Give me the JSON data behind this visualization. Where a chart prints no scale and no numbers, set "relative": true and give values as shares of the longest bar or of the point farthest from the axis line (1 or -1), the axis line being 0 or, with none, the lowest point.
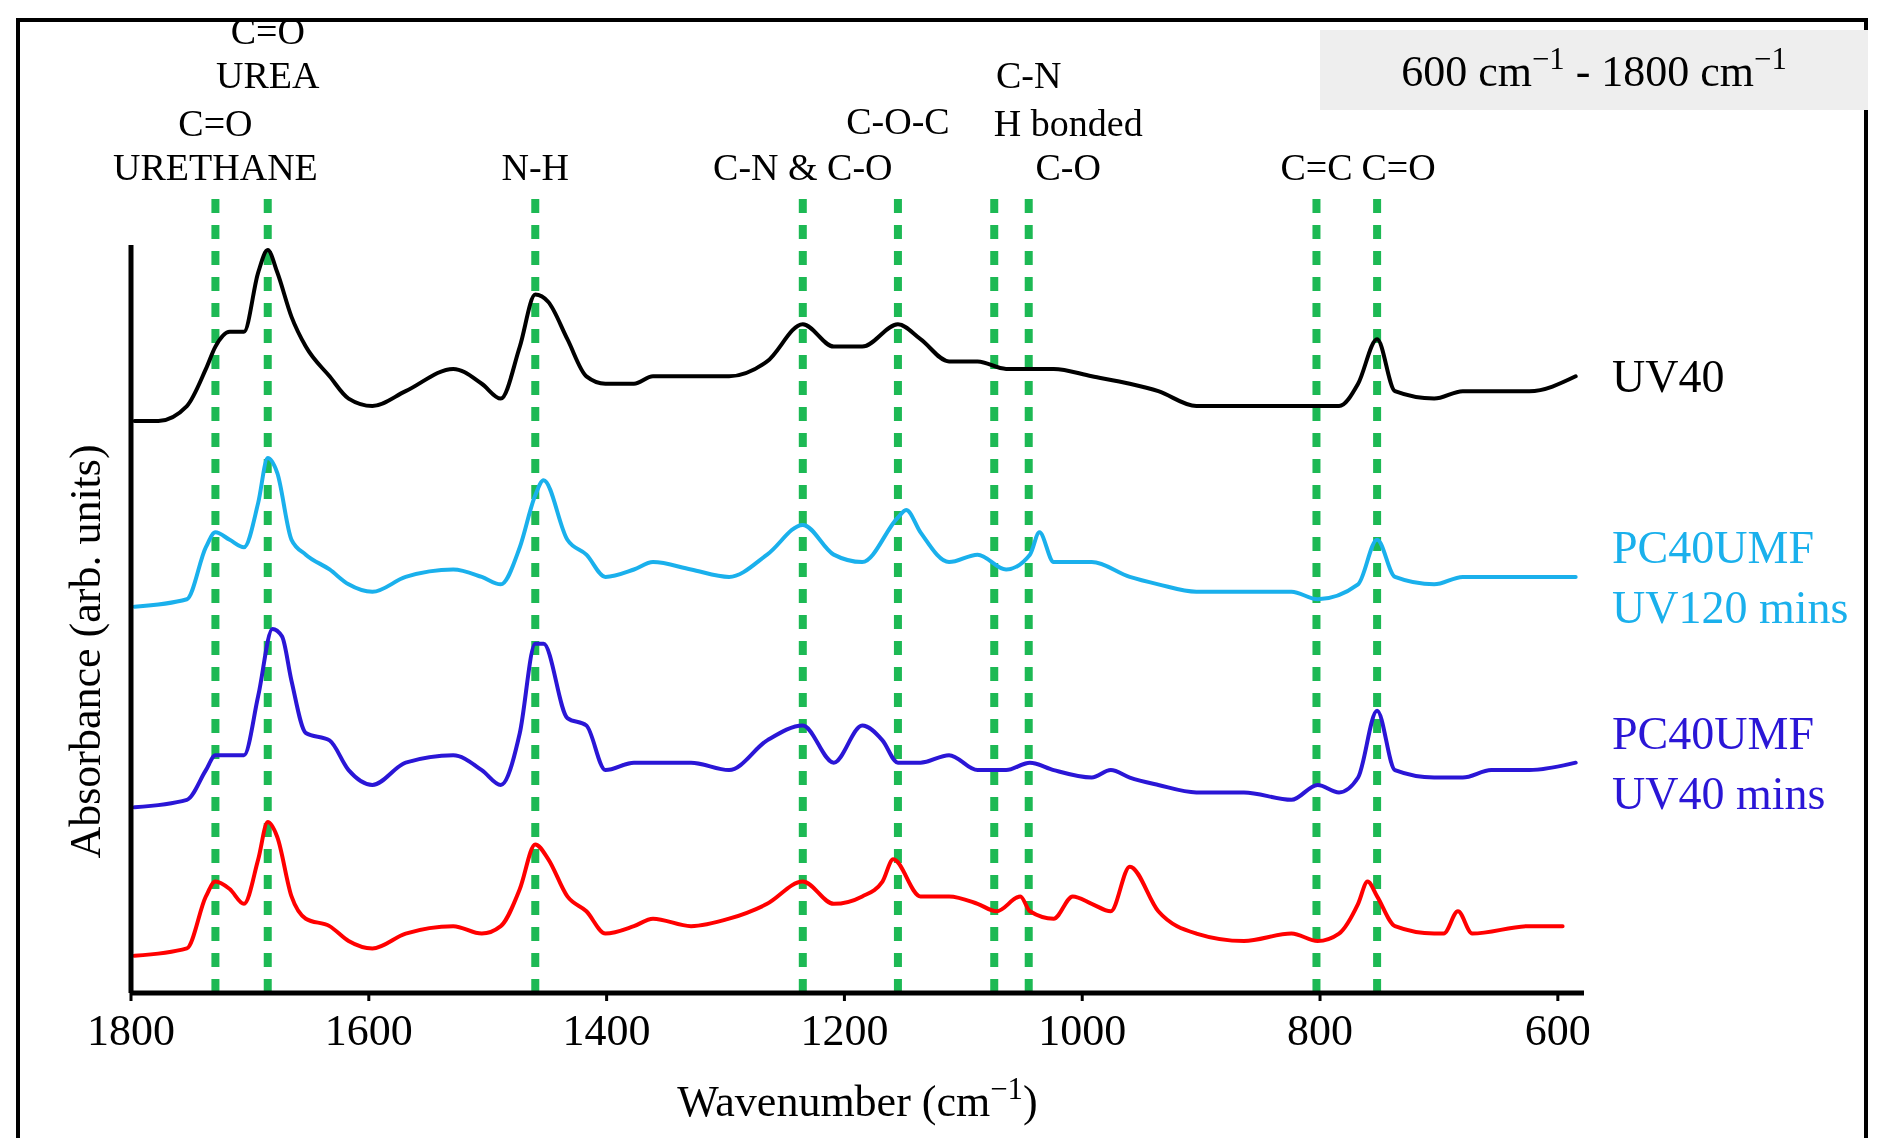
{
  "chart_data": {
    "type": "line",
    "relative": true,
    "xlabel": "Wavenumber (cm$^{−1}$)",
    "ylabel": "Absorbance (arb. units)",
    "xlim": [
      1800,
      578
    ],
    "xticks": [
      1800,
      1600,
      1400,
      1200,
      1000,
      800,
      600
    ],
    "grid": false,
    "legend": false,
    "line_style": "solid",
    "marker": "none",
    "annotations": [
      "600 cm$^{−1}$ - 1800 cm$^{−1}$"
    ],
    "ref_lines": [
      {
        "axis": "x",
        "value": 1729,
        "label": "C=O\nURETHANE",
        "color": "#1db954",
        "line_style": "dashed"
      },
      {
        "axis": "x",
        "value": 1685,
        "label": "C=O\nUREA",
        "color": "#1db954",
        "line_style": "dashed"
      },
      {
        "axis": "x",
        "value": 1460,
        "label": "N-H",
        "color": "#1db954",
        "line_style": "dashed"
      },
      {
        "axis": "x",
        "value": 1235,
        "label": "C-N & C-O",
        "color": "#1db954",
        "line_style": "dashed"
      },
      {
        "axis": "x",
        "value": 1155,
        "label": "C-O-C",
        "color": "#1db954",
        "line_style": "dashed"
      },
      {
        "axis": "x",
        "value": 1074,
        "label": "H bonded\nC-O",
        "color": "#1db954",
        "line_style": "dashed"
      },
      {
        "axis": "x",
        "value": 1045,
        "label": "C-N",
        "color": "#1db954",
        "line_style": "dashed"
      },
      {
        "axis": "x",
        "value": 803,
        "label": "C=C",
        "color": "#1db954",
        "line_style": "dashed"
      },
      {
        "axis": "x",
        "value": 752,
        "label": "C=O",
        "color": "#1db954",
        "line_style": "dashed"
      }
    ],
    "series": [
      {
        "name": "UV40",
        "color": "#000000",
        "x": [
          1797,
          1777,
          1753,
          1737,
          1729,
          1717,
          1705,
          1693,
          1685,
          1677,
          1665,
          1653,
          1633,
          1617,
          1597,
          1569,
          1529,
          1505,
          1489,
          1473,
          1460,
          1449,
          1433,
          1417,
          1401,
          1377,
          1361,
          1329,
          1297,
          1265,
          1235,
          1209,
          1185,
          1155,
          1136,
          1112,
          1088,
          1064,
          1044,
          1024,
          992,
          960,
          936,
          904,
          864,
          824,
          802,
          784,
          768,
          752,
          737,
          704,
          680,
          656,
          624,
          585
        ],
        "values": [
          0.77,
          0.77,
          0.79,
          0.84,
          0.87,
          0.89,
          0.89,
          0.97,
          1,
          0.97,
          0.91,
          0.87,
          0.83,
          0.8,
          0.79,
          0.81,
          0.84,
          0.82,
          0.8,
          0.87,
          0.94,
          0.93,
          0.88,
          0.83,
          0.82,
          0.82,
          0.83,
          0.83,
          0.83,
          0.85,
          0.9,
          0.87,
          0.87,
          0.9,
          0.88,
          0.85,
          0.85,
          0.84,
          0.84,
          0.84,
          0.83,
          0.82,
          0.81,
          0.79,
          0.79,
          0.79,
          0.79,
          0.79,
          0.82,
          0.88,
          0.81,
          0.8,
          0.81,
          0.81,
          0.81,
          0.83
        ]
      },
      {
        "name": "PC40UMF\nUV120 mins",
        "color": "#1ab0ec",
        "x": [
          1797,
          1753,
          1737,
          1729,
          1717,
          1705,
          1693,
          1685,
          1677,
          1665,
          1653,
          1633,
          1617,
          1597,
          1569,
          1529,
          1505,
          1489,
          1473,
          1460,
          1453,
          1433,
          1417,
          1401,
          1377,
          1361,
          1329,
          1297,
          1265,
          1235,
          1209,
          1185,
          1155,
          1148,
          1136,
          1112,
          1088,
          1064,
          1044,
          1036,
          1024,
          992,
          960,
          936,
          904,
          864,
          824,
          802,
          768,
          752,
          737,
          704,
          680,
          656,
          624,
          585
        ],
        "values": [
          0.52,
          0.53,
          0.6,
          0.62,
          0.61,
          0.6,
          0.66,
          0.72,
          0.7,
          0.61,
          0.59,
          0.57,
          0.55,
          0.54,
          0.56,
          0.57,
          0.56,
          0.55,
          0.6,
          0.67,
          0.69,
          0.61,
          0.59,
          0.56,
          0.57,
          0.58,
          0.57,
          0.56,
          0.59,
          0.63,
          0.59,
          0.58,
          0.64,
          0.65,
          0.62,
          0.58,
          0.59,
          0.57,
          0.59,
          0.62,
          0.58,
          0.58,
          0.56,
          0.55,
          0.54,
          0.54,
          0.54,
          0.53,
          0.55,
          0.61,
          0.56,
          0.55,
          0.56,
          0.56,
          0.56,
          0.56
        ]
      },
      {
        "name": "PC40UMF\nUV40 mins",
        "color": "#2a16d6",
        "x": [
          1797,
          1753,
          1737,
          1729,
          1717,
          1705,
          1693,
          1681,
          1673,
          1665,
          1653,
          1633,
          1617,
          1597,
          1569,
          1529,
          1505,
          1489,
          1473,
          1460,
          1453,
          1433,
          1417,
          1401,
          1377,
          1361,
          1329,
          1297,
          1265,
          1235,
          1209,
          1185,
          1168,
          1155,
          1136,
          1112,
          1088,
          1064,
          1044,
          1024,
          992,
          976,
          960,
          936,
          904,
          864,
          824,
          802,
          784,
          768,
          752,
          737,
          704,
          680,
          656,
          624,
          585
        ],
        "values": [
          0.25,
          0.26,
          0.3,
          0.32,
          0.32,
          0.32,
          0.4,
          0.49,
          0.48,
          0.42,
          0.35,
          0.34,
          0.3,
          0.28,
          0.31,
          0.32,
          0.3,
          0.28,
          0.35,
          0.47,
          0.47,
          0.37,
          0.36,
          0.3,
          0.31,
          0.31,
          0.31,
          0.3,
          0.34,
          0.36,
          0.31,
          0.36,
          0.34,
          0.31,
          0.31,
          0.32,
          0.3,
          0.3,
          0.31,
          0.3,
          0.29,
          0.3,
          0.29,
          0.28,
          0.27,
          0.27,
          0.26,
          0.28,
          0.27,
          0.29,
          0.38,
          0.3,
          0.29,
          0.29,
          0.3,
          0.3,
          0.31
        ]
      },
      {
        "color": "#ff0000",
        "x": [
          1797,
          1753,
          1737,
          1729,
          1717,
          1705,
          1693,
          1685,
          1677,
          1665,
          1653,
          1633,
          1617,
          1597,
          1569,
          1529,
          1505,
          1489,
          1473,
          1460,
          1449,
          1433,
          1417,
          1401,
          1377,
          1361,
          1329,
          1297,
          1265,
          1235,
          1209,
          1185,
          1168,
          1159,
          1136,
          1112,
          1088,
          1072,
          1052,
          1044,
          1024,
          1008,
          992,
          976,
          960,
          936,
          904,
          864,
          824,
          802,
          784,
          768,
          760,
          752,
          737,
          704,
          696,
          684,
          672,
          624,
          596
        ],
        "values": [
          0.05,
          0.06,
          0.13,
          0.15,
          0.14,
          0.12,
          0.18,
          0.23,
          0.21,
          0.13,
          0.1,
          0.09,
          0.07,
          0.06,
          0.08,
          0.09,
          0.08,
          0.09,
          0.14,
          0.2,
          0.18,
          0.13,
          0.11,
          0.08,
          0.09,
          0.1,
          0.09,
          0.1,
          0.12,
          0.15,
          0.12,
          0.13,
          0.15,
          0.18,
          0.13,
          0.13,
          0.12,
          0.11,
          0.13,
          0.11,
          0.1,
          0.13,
          0.12,
          0.11,
          0.17,
          0.11,
          0.08,
          0.07,
          0.08,
          0.07,
          0.08,
          0.12,
          0.15,
          0.13,
          0.09,
          0.08,
          0.08,
          0.11,
          0.08,
          0.09,
          0.09
        ]
      }
    ]
  }
}
